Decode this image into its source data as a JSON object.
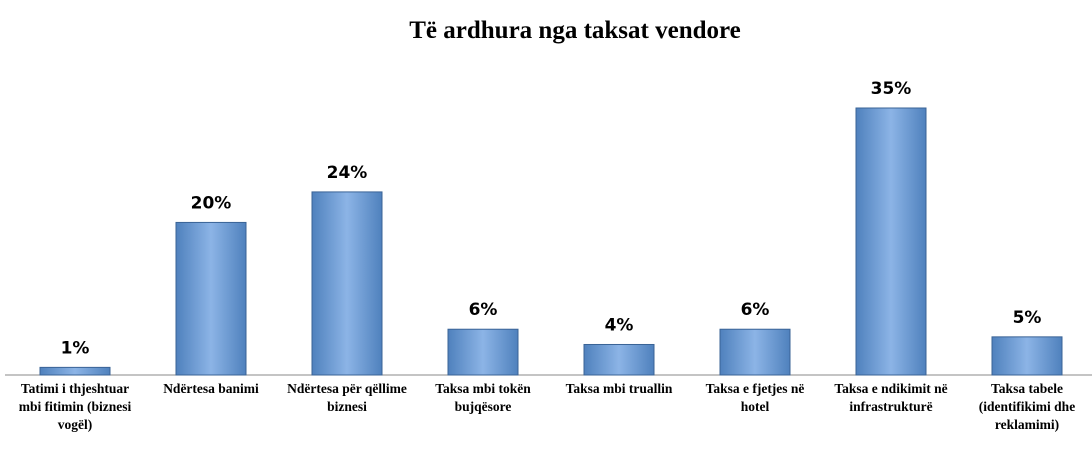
{
  "chart_data": {
    "type": "bar",
    "title": "Të ardhura nga taksat vendore",
    "categories": [
      "Tatimi i thjeshtuar mbi fitimin (biznesi vogël)",
      "Ndërtesa banimi",
      "Ndërtesa për qëllime biznesi",
      "Taksa mbi tokën bujqësore",
      "Taksa mbi truallin",
      "Taksa e fjetjes në hotel",
      "Taksa e ndikimit në infrastrukturë",
      "Taksa tabele (identifikimi dhe reklamimi)"
    ],
    "values": [
      1,
      20,
      24,
      6,
      4,
      6,
      35,
      5
    ],
    "value_labels": [
      "1%",
      "20%",
      "24%",
      "6%",
      "4%",
      "6%",
      "35%",
      "5%"
    ],
    "color": "#4f81bd"
  }
}
